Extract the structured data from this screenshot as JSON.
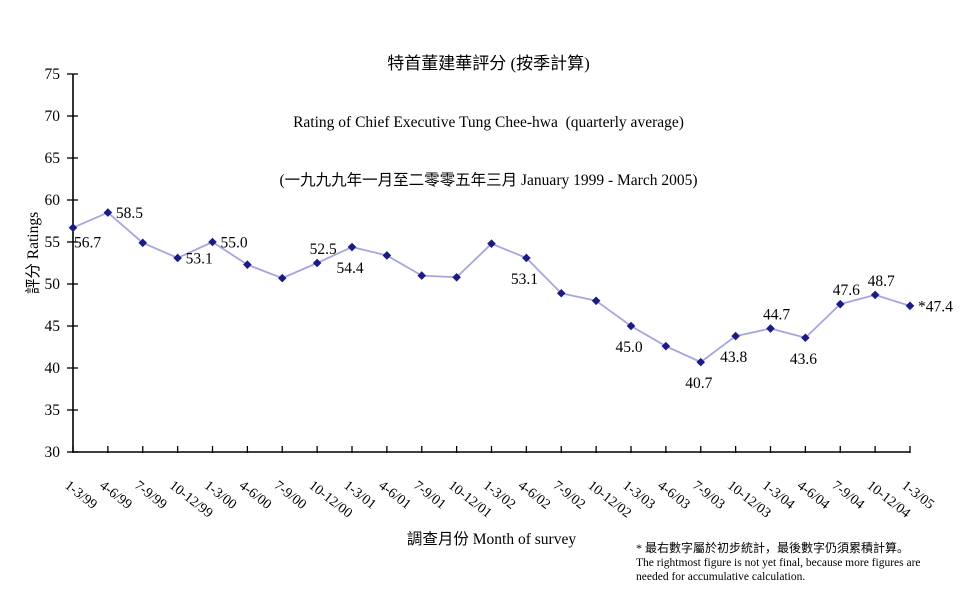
{
  "chart_data": {
    "type": "line",
    "title": "特首董建華評分 (按季計算)",
    "subtitle": "Rating of Chief Executive Tung Chee-hwa  (quarterly average)",
    "period_line": "(一九九九年一月至二零零五年三月 January 1999 - March 2005)",
    "xlabel": "調查月份 Month of survey",
    "ylabel": "評分 Ratings",
    "ylim": [
      30,
      75
    ],
    "ytick_step": 5,
    "grid": false,
    "legend": "none",
    "categories": [
      "1-3/99",
      "4-6/99",
      "7-9/99",
      "10-12/99",
      "1-3/00",
      "4-6/00",
      "7-9/00",
      "10-12/00",
      "1-3/01",
      "4-6/01",
      "7-9/01",
      "10-12/01",
      "1-3/02",
      "4-6/02",
      "7-9/02",
      "10-12/02",
      "1-3/03",
      "4-6/03",
      "7-9/03",
      "10-12/03",
      "1-3/04",
      "4-6/04",
      "7-9/04",
      "10-12/04",
      "1-3/05"
    ],
    "values": [
      56.7,
      58.5,
      54.9,
      53.1,
      55.0,
      52.3,
      50.7,
      52.5,
      54.4,
      53.4,
      51.0,
      50.8,
      54.8,
      53.1,
      48.9,
      48.0,
      45.0,
      42.6,
      40.7,
      43.8,
      44.7,
      43.6,
      47.6,
      48.7,
      47.4
    ],
    "point_labels": [
      "56.7",
      "58.5",
      "",
      "53.1",
      "55.0",
      "",
      "",
      "52.5",
      "54.4",
      "",
      "",
      "",
      "",
      "53.1",
      "",
      "",
      "45.0",
      "",
      "40.7",
      "43.8",
      "44.7",
      "43.6",
      "47.6",
      "48.7",
      "*47.4"
    ],
    "label_positions": [
      "below-right",
      "right",
      "",
      "right",
      "right",
      "",
      "",
      "above",
      "below",
      "",
      "",
      "",
      "",
      "below",
      "",
      "",
      "below",
      "",
      "below",
      "below",
      "above",
      "below",
      "above",
      "above",
      "right"
    ],
    "colors": {
      "line": "#A6A6DE",
      "marker": "#1B1B86",
      "axis": "#000000",
      "text": "#000000"
    }
  },
  "footnote": {
    "line1": "* 最右數字屬於初步統計，最後數字仍須累積計算。",
    "line2": "The rightmost figure is not yet final, because more figures are",
    "line3": "needed for accumulative calculation."
  }
}
